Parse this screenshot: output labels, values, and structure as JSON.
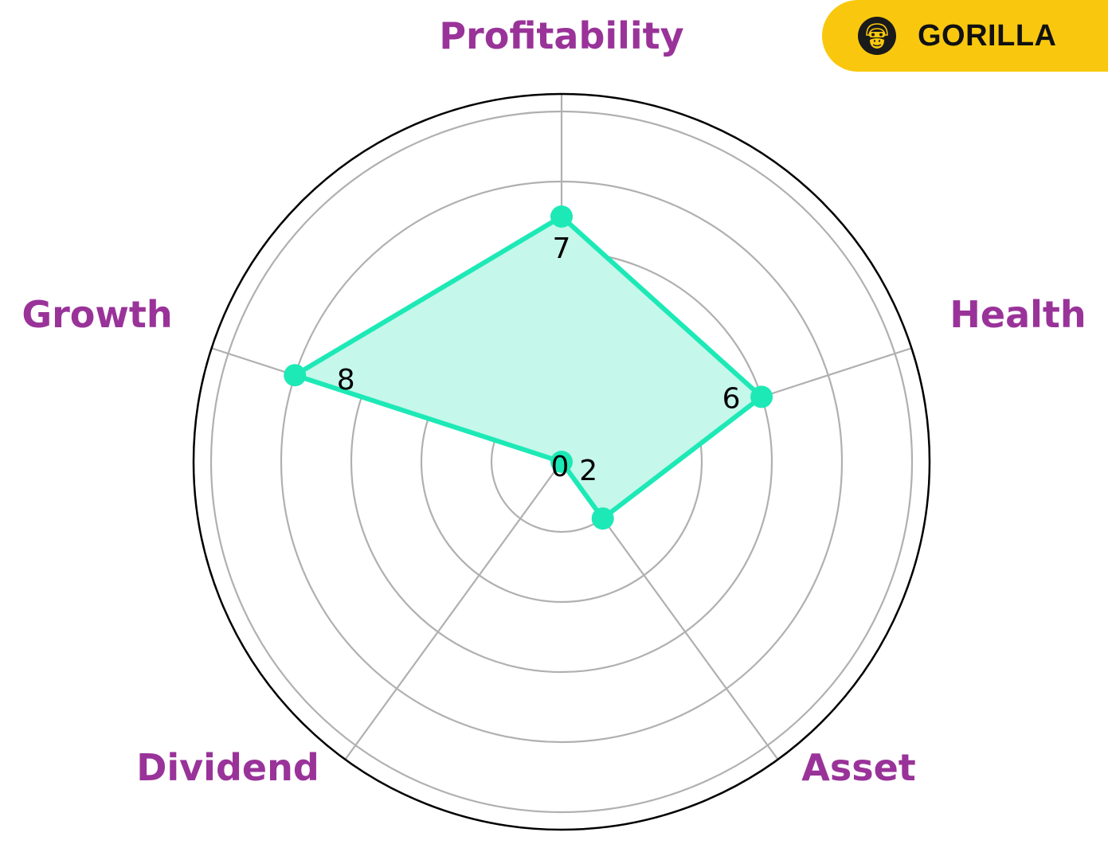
{
  "brand": {
    "name": "GORILLA",
    "icon": "gorilla-face-icon",
    "badge_color": "#f9c80e"
  },
  "chart_data": {
    "type": "radar",
    "categories": [
      "Profitability",
      "Health",
      "Asset",
      "Dividend",
      "Growth"
    ],
    "values": [
      7,
      6,
      2,
      0,
      8
    ],
    "value_labels": [
      "7",
      "6",
      "2",
      "0",
      "8"
    ],
    "rmax": 10,
    "rings": [
      2,
      4,
      6,
      8,
      10
    ],
    "grid": true,
    "colors": {
      "series": "#1de9b6",
      "fill": "#c5f7ea",
      "label": "#993399",
      "grid": "#b0b0b0",
      "frame": "#000000"
    }
  }
}
